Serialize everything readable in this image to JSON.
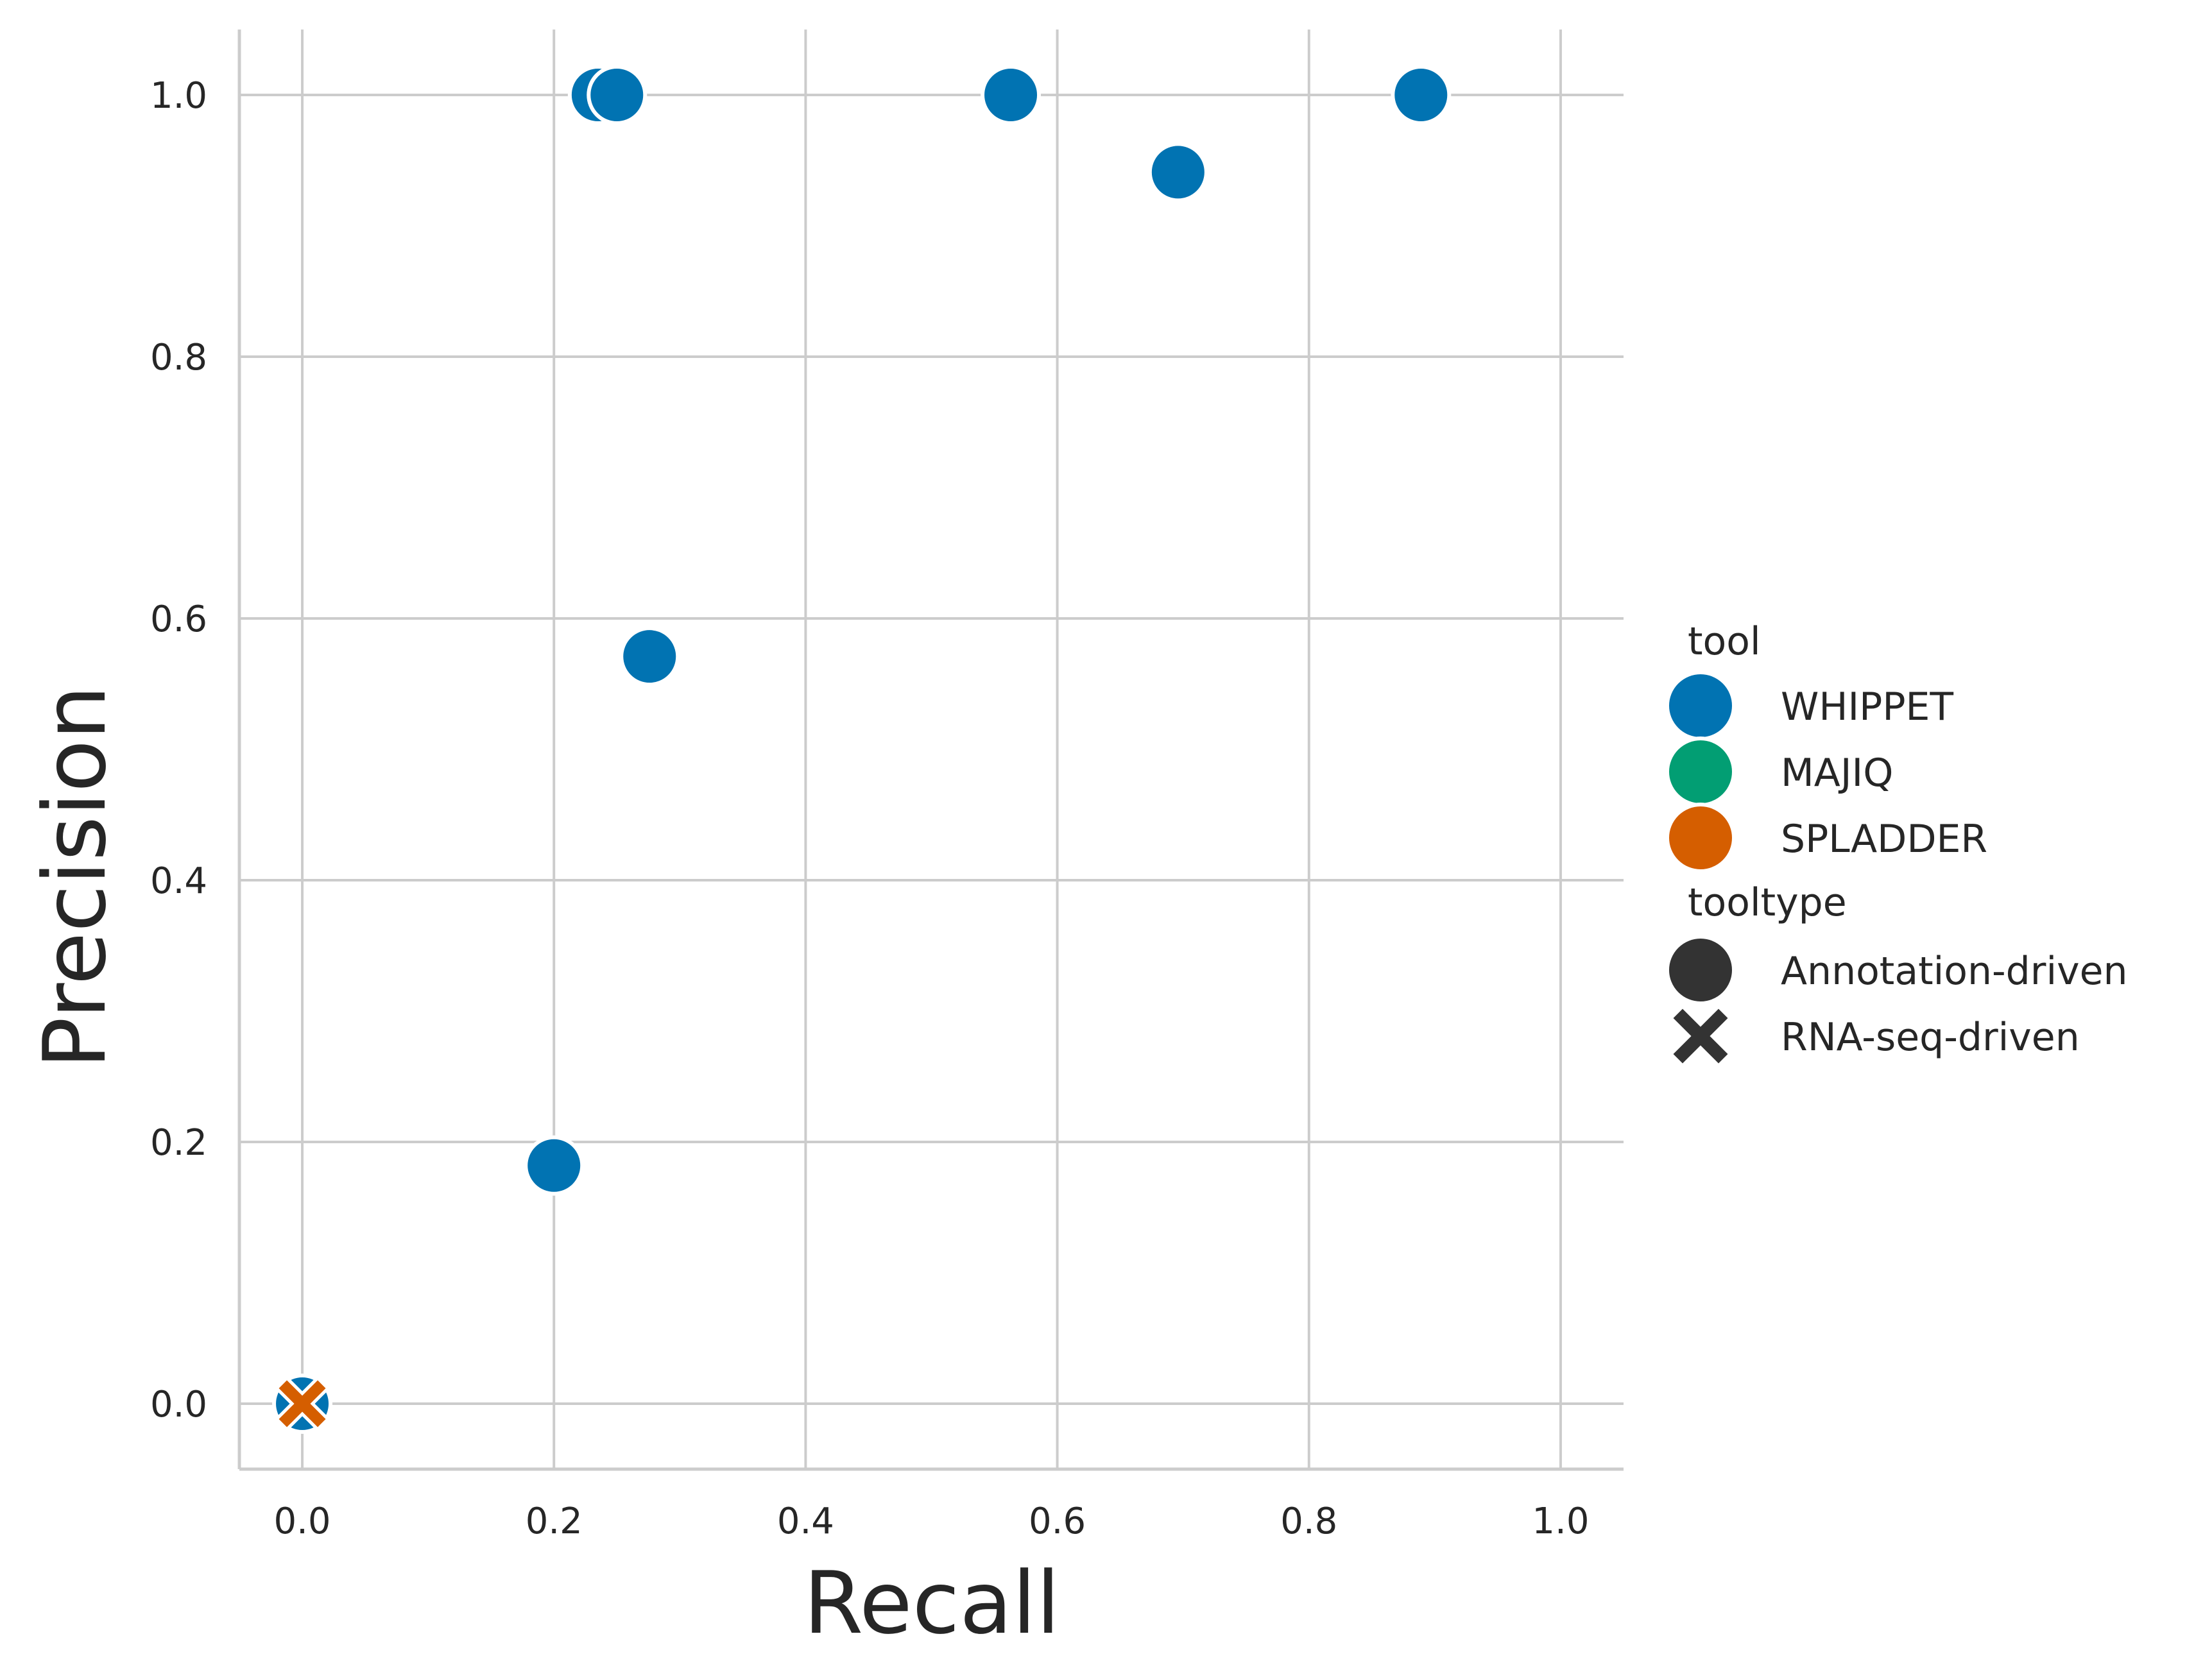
{
  "chart_data": {
    "type": "scatter",
    "xlabel": "Recall",
    "ylabel": "Precision",
    "xlim": [
      -0.05,
      1.05
    ],
    "ylim": [
      -0.05,
      1.05
    ],
    "x_ticks": [
      "0.0",
      "0.2",
      "0.4",
      "0.6",
      "0.8",
      "1.0"
    ],
    "y_ticks": [
      "0.0",
      "0.2",
      "0.4",
      "0.6",
      "0.8",
      "1.0"
    ],
    "grid": true,
    "legend_position": "right",
    "series": [
      {
        "name": "WHIPPET",
        "color": "#0173b2",
        "marker": "circle",
        "points": [
          {
            "x": 0.235,
            "y": 1.0
          },
          {
            "x": 0.25,
            "y": 1.0
          },
          {
            "x": 0.563,
            "y": 1.0
          },
          {
            "x": 0.696,
            "y": 0.941
          },
          {
            "x": 0.889,
            "y": 1.0
          },
          {
            "x": 0.276,
            "y": 0.571
          },
          {
            "x": 0.2,
            "y": 0.182
          },
          {
            "x": 0.0,
            "y": 0.0
          }
        ]
      },
      {
        "name": "MAJIQ",
        "color": "#029e73",
        "marker": "circle",
        "points": []
      },
      {
        "name": "SPLADDER",
        "color": "#d55e00",
        "marker": "x",
        "points": [
          {
            "x": 0.0,
            "y": 0.0
          }
        ]
      }
    ],
    "legend": {
      "tool_title": "tool",
      "tools": [
        {
          "label": "WHIPPET",
          "color": "#0173b2"
        },
        {
          "label": "MAJIQ",
          "color": "#029e73"
        },
        {
          "label": "SPLADDER",
          "color": "#d55e00"
        }
      ],
      "tooltype_title": "tooltype",
      "tooltypes": [
        {
          "label": "Annotation-driven",
          "marker": "circle",
          "color": "#333333"
        },
        {
          "label": "RNA-seq-driven",
          "marker": "x",
          "color": "#333333"
        }
      ]
    }
  }
}
